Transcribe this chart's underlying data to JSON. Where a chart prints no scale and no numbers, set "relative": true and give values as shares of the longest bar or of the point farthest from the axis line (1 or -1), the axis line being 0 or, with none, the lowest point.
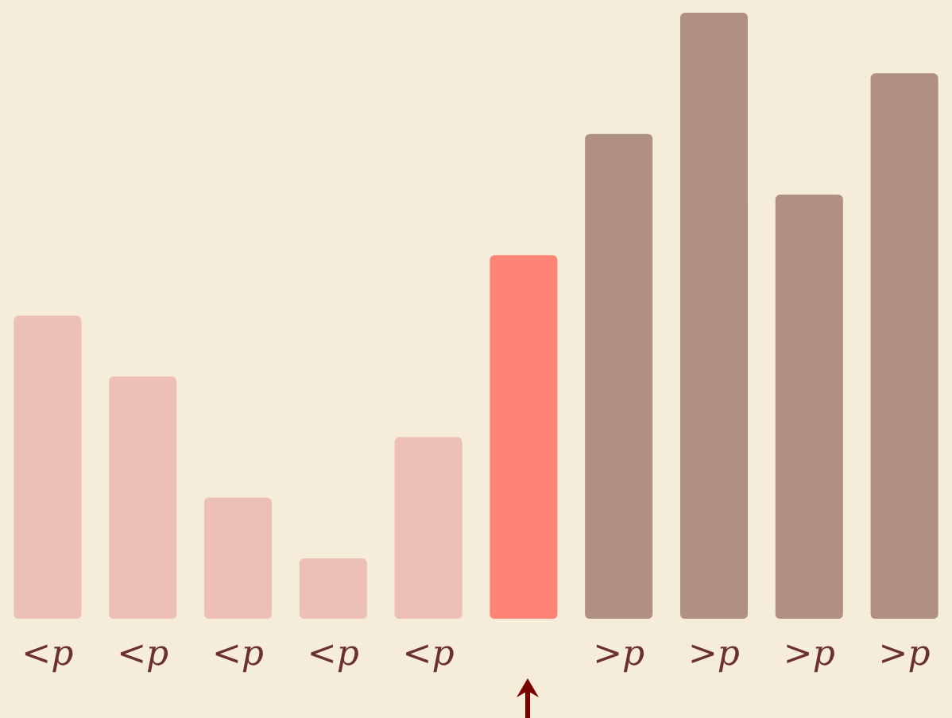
{
  "chart_data": {
    "type": "bar",
    "relative": true,
    "categories": [
      "<p",
      "<p",
      "<p",
      "<p",
      "<p",
      null,
      ">p",
      ">p",
      ">p",
      ">p"
    ],
    "values": [
      0.5,
      0.4,
      0.2,
      0.1,
      0.3,
      0.6,
      0.8,
      1.0,
      0.7,
      0.9
    ],
    "colors": [
      "#ecc0b4",
      "#ecc0b4",
      "#ecc0b4",
      "#ecc0b4",
      "#ecc0b4",
      "#ff8478",
      "#b09080",
      "#b09080",
      "#b09080",
      "#b09080"
    ],
    "grid": false,
    "legend": false
  }
}
